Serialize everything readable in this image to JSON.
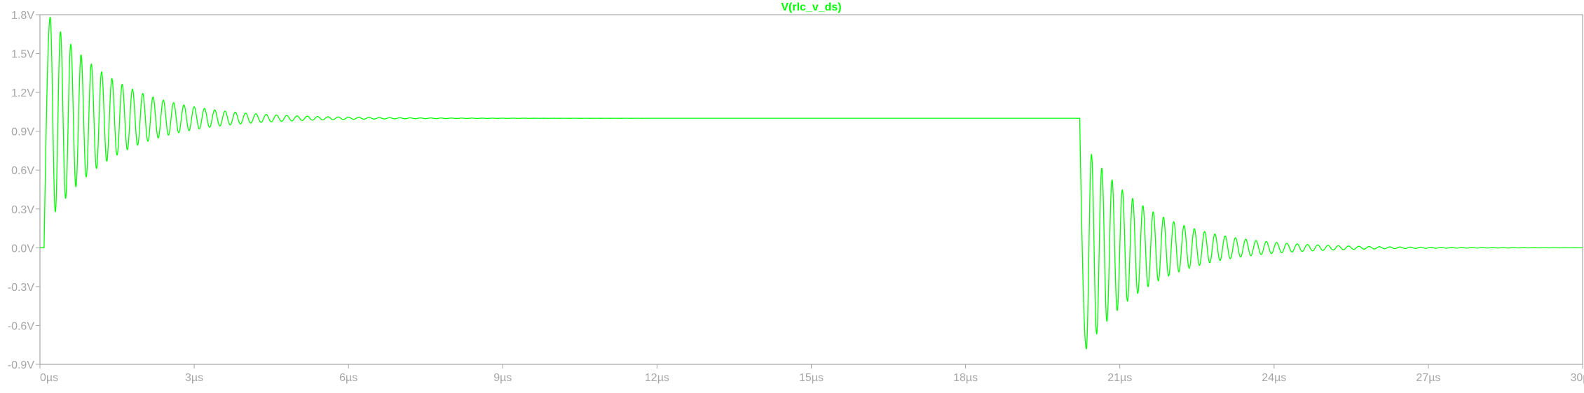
{
  "chart_data": {
    "type": "line",
    "title": "V(rlc_v_ds)",
    "x_unit": "µs",
    "y_unit": "V",
    "xlim": [
      0,
      30
    ],
    "ylim": [
      -0.9,
      1.8
    ],
    "x_ticks": [
      0,
      3,
      6,
      9,
      12,
      15,
      18,
      21,
      24,
      27,
      30
    ],
    "x_tick_labels": [
      "0µs",
      "3µs",
      "6µs",
      "9µs",
      "12µs",
      "15µs",
      "18µs",
      "21µs",
      "24µs",
      "27µs",
      "30µs"
    ],
    "y_ticks": [
      1.8,
      1.5,
      1.2,
      0.9,
      0.6,
      0.3,
      0.0,
      -0.3,
      -0.6,
      -0.9
    ],
    "y_tick_labels": [
      "1.8V",
      "1.5V",
      "1.2V",
      "0.9V",
      "0.6V",
      "0.3V",
      "0.0V",
      "-0.3V",
      "-0.6V",
      "-0.9V"
    ],
    "grid": false,
    "series": [
      {
        "name": "V(rlc_v_ds)",
        "color": "#00ff00",
        "initial_level": 0.0,
        "segments": [
          {
            "t_start": 0.08,
            "t_end": 20.22,
            "from_level": 0.0,
            "to_level": 1.0,
            "first_overshoot_peak": 1.78,
            "first_overshoot_time": 0.2,
            "ring_period": 0.2,
            "settled_by": 6.5
          },
          {
            "t_start": 20.22,
            "t_end": 30.0,
            "from_level": 1.0,
            "to_level": 0.0,
            "first_overshoot_peak": -0.78,
            "first_overshoot_time": 20.35,
            "ring_period": 0.2,
            "settled_by": 26.5
          }
        ]
      }
    ]
  },
  "colors": {
    "axis": "#a6a6a6",
    "trace": "#00ff00",
    "background": "#ffffff"
  }
}
